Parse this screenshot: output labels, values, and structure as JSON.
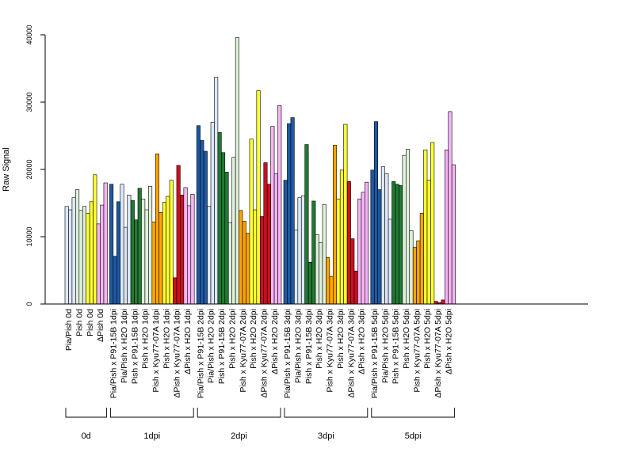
{
  "chart_data": {
    "type": "bar",
    "ylabel": "Raw Signal",
    "ylim": [
      0,
      40000
    ],
    "yticks": [
      0,
      10000,
      20000,
      30000,
      40000
    ],
    "grid": false,
    "legend": "none",
    "groups": [
      {
        "label": "0d",
        "conditions": [
          {
            "label": "Pia/Pish 0d",
            "color": "#dce8f7",
            "values": [
              14500,
              14000,
              15800
            ]
          },
          {
            "label": "Pish 0d",
            "color": "#dff0da",
            "values": [
              17000,
              13900,
              14500
            ]
          },
          {
            "label": "Pish 0d",
            "color": "#ffff33",
            "values": [
              13500,
              15200,
              19200
            ]
          },
          {
            "label": "ΔPish 0d",
            "color": "#f5b4f5",
            "values": [
              11900,
              14700,
              18000
            ]
          }
        ]
      },
      {
        "label": "1dpi",
        "conditions": [
          {
            "label": "Pia/Pish x P91-15B 1dpi",
            "color": "#1f59a3",
            "values": [
              17800,
              7100,
              15200
            ]
          },
          {
            "label": "Pia/Pish x H2O 1dpi",
            "color": "#dce8f7",
            "values": [
              17800,
              11400,
              16200
            ]
          },
          {
            "label": "Pish x P91-15B 1dpi",
            "color": "#217a32",
            "values": [
              15400,
              12500,
              17200
            ]
          },
          {
            "label": "Pish x H2O 1dpi",
            "color": "#dff0da",
            "values": [
              15600,
              14000,
              17500
            ]
          },
          {
            "label": "Pish x Kyu77-07A 1dpi",
            "color": "#ffa500",
            "values": [
              12200,
              22300,
              13600
            ]
          },
          {
            "label": "Pish x H2O 1dpi",
            "color": "#ffff33",
            "values": [
              15100,
              16000,
              18400
            ]
          },
          {
            "label": "ΔPish x Kyu77-07A 1dpi",
            "color": "#cc0f1f",
            "values": [
              3900,
              20600,
              16200
            ]
          },
          {
            "label": "ΔPish x H2O 1dpi",
            "color": "#f5b4f5",
            "values": [
              17300,
              14600,
              16300
            ]
          }
        ]
      },
      {
        "label": "2dpi",
        "conditions": [
          {
            "label": "Pia/Pish x P91-15B 2dpi",
            "color": "#1f59a3",
            "values": [
              26500,
              24300,
              22700
            ]
          },
          {
            "label": "Pia/Pish x H2O 2dpi",
            "color": "#dce8f7",
            "values": [
              14500,
              27000,
              33700
            ]
          },
          {
            "label": "Pish x P91-15B 2dpi",
            "color": "#217a32",
            "values": [
              25500,
              22500,
              19600
            ]
          },
          {
            "label": "Pish x H2O 2dpi",
            "color": "#dff0da",
            "values": [
              12100,
              21800,
              39600
            ]
          },
          {
            "label": "Pish x Kyu77-07A 2dpi",
            "color": "#ffa500",
            "values": [
              13900,
              12300,
              10500
            ]
          },
          {
            "label": "Pish x H2O 2dpi",
            "color": "#ffff33",
            "values": [
              24500,
              14000,
              31700
            ]
          },
          {
            "label": "ΔPish x Kyu77-07A 2dpi",
            "color": "#cc0f1f",
            "values": [
              13000,
              21000,
              17800
            ]
          },
          {
            "label": "ΔPish x H2O 2dpi",
            "color": "#f5b4f5",
            "values": [
              26400,
              19400,
              29500
            ]
          }
        ]
      },
      {
        "label": "3dpi",
        "conditions": [
          {
            "label": "Pia/Pish x P91-15B 3dpi",
            "color": "#1f59a3",
            "values": [
              18400,
              26800,
              27700
            ]
          },
          {
            "label": "Pia/Pish x H2O 3dpi",
            "color": "#dce8f7",
            "values": [
              11000,
              15800,
              16100
            ]
          },
          {
            "label": "Pish x P91-15B 3dpi",
            "color": "#217a32",
            "values": [
              23700,
              6200,
              15300
            ]
          },
          {
            "label": "Pish x H2O 3dpi",
            "color": "#dff0da",
            "values": [
              10300,
              9100,
              14800
            ]
          },
          {
            "label": "Pish x Kyu77-07A 3dpi",
            "color": "#ffa500",
            "values": [
              6900,
              4100,
              23600
            ]
          },
          {
            "label": "Pish x H2O 3dpi",
            "color": "#ffff33",
            "values": [
              15600,
              19900,
              26700
            ]
          },
          {
            "label": "ΔPish x Kyu77-07A 3dpi",
            "color": "#cc0f1f",
            "values": [
              18200,
              9700,
              4900
            ]
          },
          {
            "label": "ΔPish x H2O 3dpi",
            "color": "#f5b4f5",
            "values": [
              15600,
              16600,
              18100
            ]
          }
        ]
      },
      {
        "label": "5dpi",
        "conditions": [
          {
            "label": "Pia/Pish x P91-15B 5dpi",
            "color": "#1f59a3",
            "values": [
              19900,
              27100,
              17000
            ]
          },
          {
            "label": "Pia/Pish x H2O 5dpi",
            "color": "#dce8f7",
            "values": [
              20400,
              19400,
              12600
            ]
          },
          {
            "label": "Pish x P91-15B 5dpi",
            "color": "#217a32",
            "values": [
              18200,
              17800,
              17600
            ]
          },
          {
            "label": "Pish x H2O 5dpi",
            "color": "#dff0da",
            "values": [
              22100,
              23000,
              10900
            ]
          },
          {
            "label": "Pish x Kyu77-07A 5dpi",
            "color": "#ffa500",
            "values": [
              8400,
              9400,
              13500
            ]
          },
          {
            "label": "Pish x H2O 5dpi",
            "color": "#ffff33",
            "values": [
              22900,
              18400,
              24000
            ]
          },
          {
            "label": "ΔPish x Kyu77-07A 5dpi",
            "color": "#cc0f1f",
            "values": [
              400,
              200,
              600
            ]
          },
          {
            "label": "ΔPish x H2O 5dpi",
            "color": "#f5b4f5",
            "values": [
              22900,
              28600,
              20700
            ]
          }
        ]
      }
    ]
  }
}
